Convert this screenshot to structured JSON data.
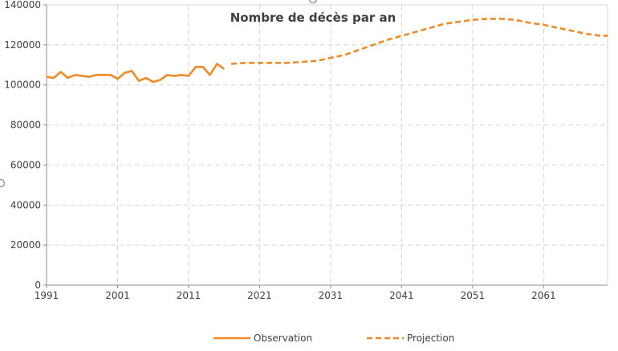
{
  "chart_data": {
    "type": "line",
    "title": "Nombre de décès par an",
    "xlabel": "",
    "ylabel": "",
    "xlim": [
      1991,
      2070
    ],
    "ylim": [
      0,
      140000
    ],
    "x_ticks": [
      "1991",
      "2001",
      "2011",
      "2021",
      "2031",
      "2041",
      "2051",
      "2061"
    ],
    "y_ticks": [
      "0",
      "20000",
      "40000",
      "60000",
      "80000",
      "100000",
      "120000",
      "140000"
    ],
    "grid": true,
    "legend_position": "bottom",
    "series": [
      {
        "name": "Observation",
        "style": "solid",
        "color": "#f08a24",
        "x": [
          1991,
          1992,
          1993,
          1994,
          1995,
          1996,
          1997,
          1998,
          1999,
          2000,
          2001,
          2002,
          2003,
          2004,
          2005,
          2006,
          2007,
          2008,
          2009,
          2010,
          2011,
          2012,
          2013,
          2014,
          2015,
          2016
        ],
        "y": [
          104000,
          103500,
          106500,
          103500,
          105000,
          104500,
          104000,
          105000,
          105000,
          105000,
          103000,
          106000,
          107000,
          102000,
          103500,
          101500,
          102500,
          105000,
          104500,
          105000,
          104500,
          109000,
          109000,
          105000,
          110500,
          108000
        ]
      },
      {
        "name": "Projection",
        "style": "dashed",
        "color": "#f08a24",
        "x": [
          2017,
          2019,
          2021,
          2023,
          2025,
          2027,
          2029,
          2031,
          2033,
          2035,
          2037,
          2039,
          2041,
          2043,
          2045,
          2047,
          2049,
          2051,
          2053,
          2055,
          2057,
          2059,
          2061,
          2063,
          2065,
          2067,
          2069,
          2070
        ],
        "y": [
          110500,
          111000,
          111000,
          111000,
          111000,
          111500,
          112000,
          113500,
          115000,
          117500,
          120000,
          122500,
          124500,
          126500,
          128500,
          130500,
          131500,
          132500,
          133000,
          133000,
          132500,
          131000,
          130000,
          128500,
          127000,
          125500,
          124500,
          124500
        ]
      }
    ]
  }
}
